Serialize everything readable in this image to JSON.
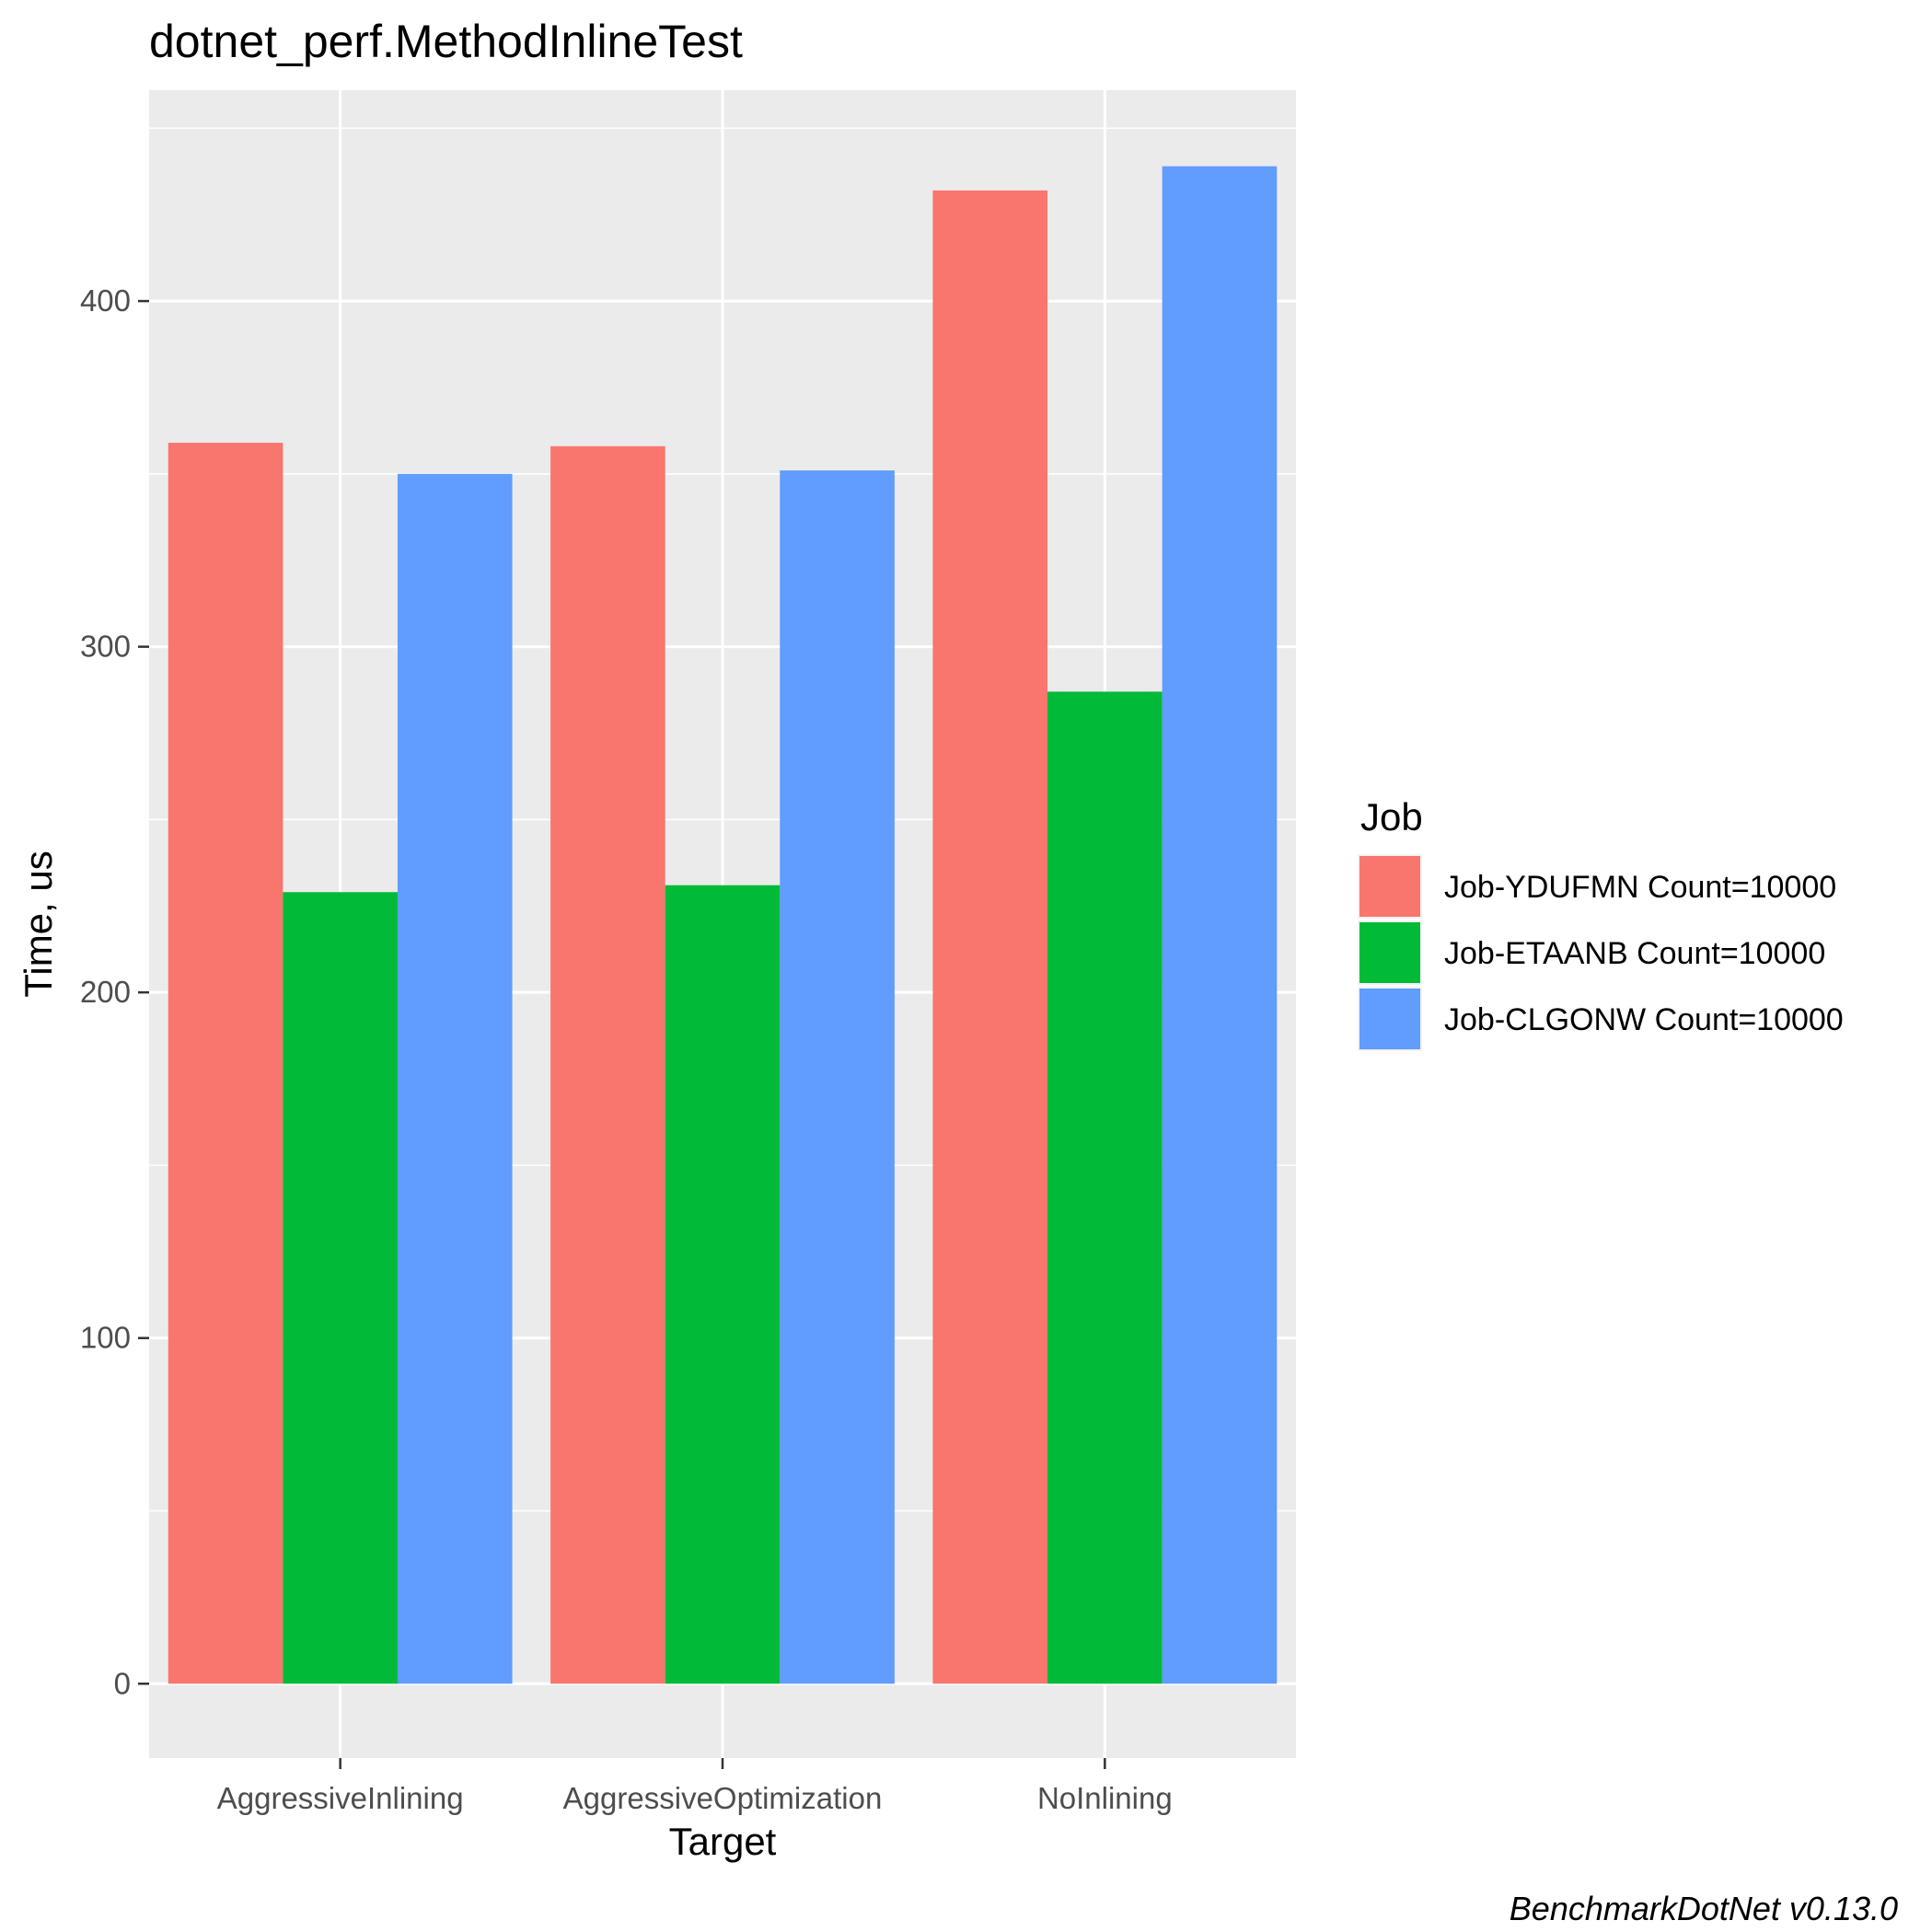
{
  "chart_data": {
    "type": "bar",
    "title": "dotnet_perf.MethodInlineTest",
    "xlabel": "Target",
    "ylabel": "Time, us",
    "categories": [
      "AggressiveInlining",
      "AggressiveOptimization",
      "NoInlining"
    ],
    "series": [
      {
        "name": "Job-YDUFMN Count=10000",
        "color": "#F8766D",
        "values": [
          359,
          358,
          432
        ]
      },
      {
        "name": "Job-ETAANB Count=10000",
        "color": "#00BA38",
        "values": [
          229,
          231,
          287
        ]
      },
      {
        "name": "Job-CLGONW Count=10000",
        "color": "#619CFF",
        "values": [
          350,
          351,
          439
        ]
      }
    ],
    "ylim": [
      -21.5,
      461
    ],
    "yticks": [
      0,
      100,
      200,
      300,
      400
    ],
    "grid": true,
    "legend": {
      "title": "Job",
      "position": "right"
    },
    "caption": "BenchmarkDotNet v0.13.0"
  }
}
